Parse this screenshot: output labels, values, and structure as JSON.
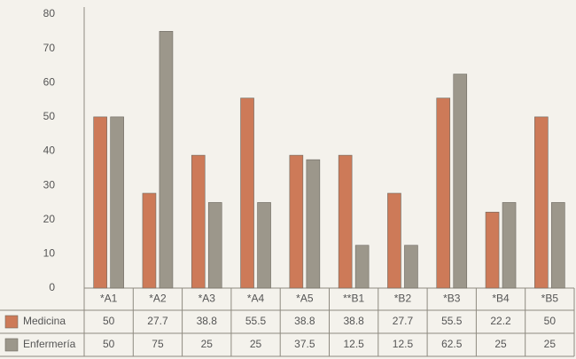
{
  "chart_data": {
    "type": "bar",
    "categories": [
      "*A1",
      "*A2",
      "*A3",
      "*A4",
      "*A5",
      "**B1",
      "*B2",
      "*B3",
      "*B4",
      "*B5"
    ],
    "series": [
      {
        "name": "Medicina",
        "color": "#cd7a58",
        "values": [
          50,
          27.7,
          38.8,
          55.5,
          38.8,
          38.8,
          27.7,
          55.5,
          22.2,
          50
        ]
      },
      {
        "name": "Enfermería",
        "color": "#9c978b",
        "values": [
          50,
          75,
          25,
          25,
          37.5,
          12.5,
          12.5,
          62.5,
          25,
          25
        ]
      }
    ],
    "ylim": [
      0,
      80
    ],
    "yticks": [
      0,
      10,
      20,
      30,
      40,
      50,
      60,
      70,
      80
    ],
    "grid": false
  }
}
